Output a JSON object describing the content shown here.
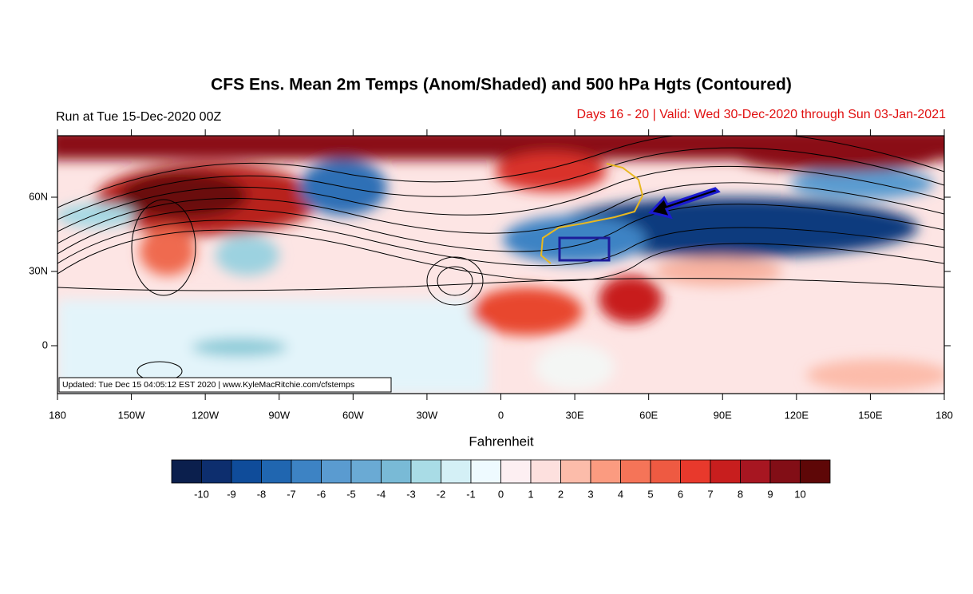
{
  "header": {
    "title": "CFS Ens. Mean 2m Temps (Anom/Shaded) and 500 hPa Hgts (Contoured)",
    "run": "Run at Tue 15-Dec-2020 00Z",
    "valid": "Days 16 - 20 | Valid: Wed 30-Dec-2020 through Sun 03-Jan-2021"
  },
  "map": {
    "lon_labels": [
      "180",
      "150W",
      "120W",
      "90W",
      "60W",
      "30W",
      "0",
      "30E",
      "60E",
      "90E",
      "120E",
      "150E",
      "180"
    ],
    "lat_labels": [
      "60N",
      "30N",
      "0"
    ],
    "footer": "Updated: Tue Dec 15 04:05:12 EST 2020 | www.KyleMacRitchie.com/cfstemps"
  },
  "colorbar": {
    "label": "Fahrenheit",
    "levels": [
      "-10",
      "-9",
      "-8",
      "-7",
      "-6",
      "-5",
      "-4",
      "-3",
      "-2",
      "-1",
      "0",
      "1",
      "2",
      "3",
      "4",
      "5",
      "6",
      "7",
      "8",
      "9",
      "10"
    ],
    "colors": [
      "#0b1f4d",
      "#0d2e6e",
      "#0f4c9a",
      "#2066b0",
      "#3d83c4",
      "#5a9bd0",
      "#6aaad4",
      "#79bad6",
      "#a9dce6",
      "#d4f0f6",
      "#eefaff",
      "#fdeff2",
      "#fde0de",
      "#fcbcaa",
      "#fb9b80",
      "#f57458",
      "#ee5a42",
      "#e8392c",
      "#c81e1e",
      "#a71621",
      "#820e16",
      "#5e0707"
    ]
  }
}
